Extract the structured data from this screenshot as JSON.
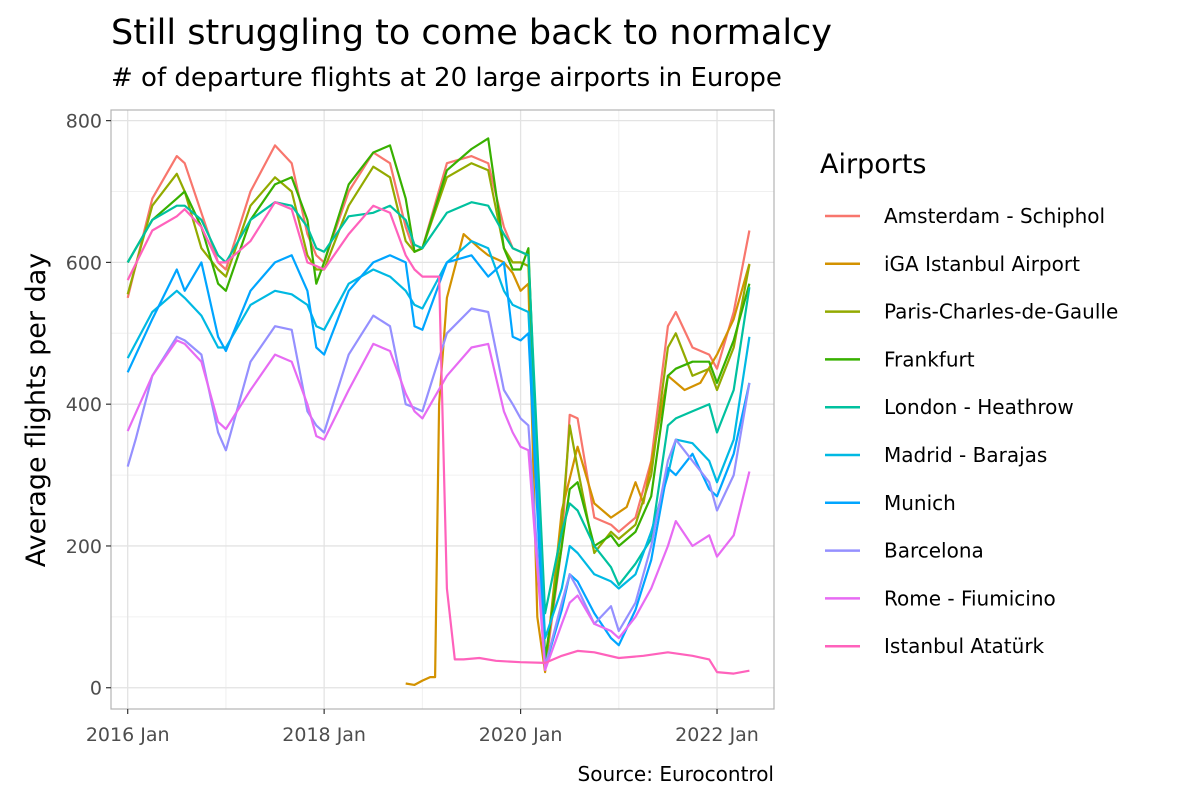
{
  "chart_data": {
    "type": "line",
    "title": "Still struggling to come back to normalcy",
    "subtitle": "# of departure flights at 20 large airports in Europe",
    "ylabel": "Average flights per day",
    "xlabel": "",
    "caption": "Source: Eurocontrol",
    "legend_title": "Airports",
    "legend_position": "right",
    "grid": true,
    "xlim": [
      2015.83,
      2022.58
    ],
    "ylim": [
      -30,
      815
    ],
    "x_ticks": [
      {
        "value": 2016.0,
        "label": "2016 Jan"
      },
      {
        "value": 2018.0,
        "label": "2018 Jan"
      },
      {
        "value": 2020.0,
        "label": "2020 Jan"
      },
      {
        "value": 2022.0,
        "label": "2022 Jan"
      }
    ],
    "y_ticks": [
      0,
      200,
      400,
      600,
      800
    ],
    "series": [
      {
        "name": "Amsterdam - Schiphol",
        "color": "#F8766D",
        "x": [
          2016.0,
          2016.25,
          2016.5,
          2016.58,
          2016.75,
          2016.92,
          2017.0,
          2017.25,
          2017.5,
          2017.67,
          2017.83,
          2017.92,
          2018.0,
          2018.25,
          2018.5,
          2018.67,
          2018.83,
          2018.92,
          2019.0,
          2019.25,
          2019.5,
          2019.67,
          2019.83,
          2019.92,
          2020.0,
          2020.08,
          2020.25,
          2020.42,
          2020.5,
          2020.58,
          2020.75,
          2020.92,
          2021.0,
          2021.17,
          2021.33,
          2021.5,
          2021.58,
          2021.75,
          2021.92,
          2022.0,
          2022.17,
          2022.33
        ],
        "y": [
          550,
          690,
          750,
          740,
          670,
          600,
          590,
          700,
          765,
          740,
          640,
          610,
          600,
          700,
          755,
          740,
          650,
          615,
          620,
          740,
          750,
          740,
          650,
          620,
          615,
          610,
          25,
          200,
          385,
          380,
          240,
          230,
          220,
          240,
          320,
          510,
          530,
          480,
          470,
          450,
          530,
          645
        ]
      },
      {
        "name": "iGA Istanbul Airport",
        "color": "#D39200",
        "x": [
          2018.83,
          2018.92,
          2019.0,
          2019.08,
          2019.13,
          2019.17,
          2019.25,
          2019.42,
          2019.58,
          2019.67,
          2019.83,
          2019.92,
          2020.0,
          2020.08,
          2020.17,
          2020.25,
          2020.42,
          2020.58,
          2020.75,
          2020.92,
          2021.08,
          2021.17,
          2021.25,
          2021.5,
          2021.67,
          2021.83,
          2022.0,
          2022.17,
          2022.33
        ],
        "y": [
          6,
          4,
          10,
          15,
          15,
          400,
          550,
          640,
          620,
          610,
          600,
          585,
          560,
          570,
          100,
          22,
          250,
          340,
          260,
          240,
          255,
          290,
          260,
          440,
          420,
          430,
          470,
          520,
          598
        ]
      },
      {
        "name": "Paris-Charles-de-Gaulle",
        "color": "#93AA00",
        "x": [
          2016.0,
          2016.25,
          2016.5,
          2016.58,
          2016.75,
          2016.92,
          2017.0,
          2017.25,
          2017.5,
          2017.67,
          2017.83,
          2017.92,
          2018.0,
          2018.25,
          2018.5,
          2018.67,
          2018.83,
          2018.92,
          2019.0,
          2019.25,
          2019.5,
          2019.67,
          2019.83,
          2019.92,
          2020.0,
          2020.08,
          2020.25,
          2020.42,
          2020.5,
          2020.58,
          2020.75,
          2020.92,
          2021.0,
          2021.17,
          2021.33,
          2021.5,
          2021.58,
          2021.75,
          2021.92,
          2022.0,
          2022.17,
          2022.33
        ],
        "y": [
          555,
          680,
          725,
          700,
          620,
          590,
          580,
          680,
          720,
          700,
          610,
          590,
          590,
          680,
          735,
          720,
          630,
          615,
          620,
          720,
          740,
          730,
          620,
          600,
          600,
          595,
          30,
          230,
          370,
          310,
          190,
          220,
          210,
          230,
          300,
          480,
          500,
          440,
          450,
          420,
          480,
          597
        ]
      },
      {
        "name": "Frankfurt",
        "color": "#38B000",
        "x": [
          2016.0,
          2016.25,
          2016.5,
          2016.58,
          2016.75,
          2016.92,
          2017.0,
          2017.25,
          2017.5,
          2017.67,
          2017.83,
          2017.92,
          2018.0,
          2018.25,
          2018.5,
          2018.67,
          2018.83,
          2018.92,
          2019.0,
          2019.25,
          2019.5,
          2019.67,
          2019.83,
          2019.92,
          2020.0,
          2020.08,
          2020.25,
          2020.42,
          2020.5,
          2020.58,
          2020.75,
          2020.92,
          2021.0,
          2021.17,
          2021.33,
          2021.5,
          2021.58,
          2021.75,
          2021.92,
          2022.0,
          2022.17,
          2022.33
        ],
        "y": [
          600,
          660,
          690,
          700,
          650,
          570,
          560,
          660,
          710,
          720,
          660,
          570,
          600,
          710,
          755,
          765,
          690,
          615,
          620,
          730,
          760,
          775,
          620,
          590,
          590,
          620,
          40,
          200,
          280,
          290,
          200,
          215,
          200,
          220,
          270,
          440,
          450,
          460,
          460,
          430,
          490,
          570
        ]
      },
      {
        "name": "London - Heathrow",
        "color": "#00C19F",
        "x": [
          2016.0,
          2016.25,
          2016.5,
          2016.58,
          2016.75,
          2016.92,
          2017.0,
          2017.25,
          2017.5,
          2017.67,
          2017.83,
          2017.92,
          2018.0,
          2018.25,
          2018.5,
          2018.67,
          2018.83,
          2018.92,
          2019.0,
          2019.25,
          2019.5,
          2019.67,
          2019.83,
          2019.92,
          2020.0,
          2020.08,
          2020.25,
          2020.42,
          2020.5,
          2020.58,
          2020.75,
          2020.92,
          2021.0,
          2021.17,
          2021.33,
          2021.5,
          2021.58,
          2021.75,
          2021.92,
          2022.0,
          2022.17,
          2022.33
        ],
        "y": [
          600,
          660,
          680,
          680,
          660,
          610,
          600,
          660,
          685,
          680,
          650,
          620,
          615,
          665,
          670,
          680,
          660,
          625,
          620,
          670,
          685,
          680,
          640,
          620,
          615,
          610,
          105,
          220,
          260,
          250,
          200,
          170,
          145,
          175,
          210,
          370,
          380,
          390,
          400,
          360,
          420,
          565
        ]
      },
      {
        "name": "Madrid - Barajas",
        "color": "#00B9E3",
        "x": [
          2016.0,
          2016.25,
          2016.5,
          2016.58,
          2016.75,
          2016.92,
          2017.0,
          2017.25,
          2017.5,
          2017.67,
          2017.83,
          2017.92,
          2018.0,
          2018.25,
          2018.5,
          2018.67,
          2018.83,
          2018.92,
          2019.0,
          2019.25,
          2019.5,
          2019.67,
          2019.83,
          2019.92,
          2020.0,
          2020.08,
          2020.25,
          2020.42,
          2020.5,
          2020.58,
          2020.75,
          2020.92,
          2021.0,
          2021.17,
          2021.33,
          2021.5,
          2021.58,
          2021.75,
          2021.92,
          2022.0,
          2022.17,
          2022.33
        ],
        "y": [
          465,
          530,
          560,
          550,
          525,
          480,
          480,
          540,
          560,
          555,
          540,
          510,
          505,
          570,
          590,
          580,
          560,
          540,
          535,
          600,
          630,
          620,
          560,
          540,
          535,
          530,
          70,
          140,
          200,
          190,
          160,
          150,
          140,
          160,
          220,
          300,
          350,
          345,
          320,
          290,
          350,
          495
        ]
      },
      {
        "name": "Munich",
        "color": "#00A5FF",
        "x": [
          2016.0,
          2016.25,
          2016.5,
          2016.58,
          2016.75,
          2016.92,
          2017.0,
          2017.25,
          2017.5,
          2017.67,
          2017.83,
          2017.92,
          2018.0,
          2018.25,
          2018.5,
          2018.67,
          2018.83,
          2018.92,
          2019.0,
          2019.25,
          2019.5,
          2019.67,
          2019.83,
          2019.92,
          2020.0,
          2020.08,
          2020.25,
          2020.42,
          2020.5,
          2020.58,
          2020.75,
          2020.92,
          2021.0,
          2021.17,
          2021.33,
          2021.5,
          2021.58,
          2021.75,
          2021.92,
          2022.0,
          2022.17,
          2022.33
        ],
        "y": [
          445,
          520,
          590,
          560,
          600,
          495,
          475,
          560,
          600,
          610,
          560,
          480,
          470,
          560,
          600,
          610,
          600,
          510,
          505,
          600,
          610,
          580,
          600,
          495,
          490,
          500,
          30,
          110,
          160,
          150,
          105,
          70,
          60,
          110,
          180,
          310,
          300,
          330,
          280,
          270,
          330,
          430
        ]
      },
      {
        "name": "Barcelona",
        "color": "#9590FF",
        "x": [
          2016.0,
          2016.08,
          2016.25,
          2016.5,
          2016.58,
          2016.75,
          2016.92,
          2017.0,
          2017.25,
          2017.5,
          2017.67,
          2017.83,
          2017.92,
          2018.0,
          2018.25,
          2018.5,
          2018.67,
          2018.83,
          2018.92,
          2019.0,
          2019.25,
          2019.5,
          2019.67,
          2019.83,
          2019.92,
          2020.0,
          2020.08,
          2020.25,
          2020.42,
          2020.5,
          2020.58,
          2020.75,
          2020.92,
          2021.0,
          2021.17,
          2021.33,
          2021.5,
          2021.58,
          2021.75,
          2021.92,
          2022.0,
          2022.17,
          2022.33
        ],
        "y": [
          312,
          350,
          440,
          495,
          490,
          470,
          360,
          335,
          460,
          510,
          505,
          390,
          370,
          360,
          470,
          525,
          510,
          400,
          395,
          390,
          500,
          535,
          530,
          420,
          400,
          380,
          370,
          30,
          120,
          160,
          140,
          90,
          115,
          80,
          120,
          200,
          320,
          350,
          320,
          290,
          250,
          300,
          430
        ]
      },
      {
        "name": "Rome - Fiumicino",
        "color": "#E76BF3",
        "x": [
          2016.0,
          2016.25,
          2016.5,
          2016.58,
          2016.75,
          2016.92,
          2017.0,
          2017.25,
          2017.5,
          2017.67,
          2017.83,
          2017.92,
          2018.0,
          2018.25,
          2018.5,
          2018.67,
          2018.83,
          2018.92,
          2019.0,
          2019.25,
          2019.5,
          2019.67,
          2019.83,
          2019.92,
          2020.0,
          2020.08,
          2020.25,
          2020.42,
          2020.5,
          2020.58,
          2020.75,
          2020.92,
          2021.0,
          2021.17,
          2021.33,
          2021.5,
          2021.58,
          2021.75,
          2021.92,
          2022.0,
          2022.17,
          2022.33
        ],
        "y": [
          362,
          440,
          490,
          485,
          460,
          375,
          365,
          420,
          470,
          460,
          400,
          355,
          350,
          420,
          485,
          475,
          415,
          390,
          380,
          440,
          480,
          485,
          390,
          360,
          340,
          335,
          25,
          90,
          120,
          130,
          90,
          80,
          70,
          100,
          140,
          200,
          235,
          200,
          215,
          185,
          215,
          305
        ]
      },
      {
        "name": "Istanbul Atatürk",
        "color": "#FF62BC",
        "x": [
          2016.0,
          2016.25,
          2016.5,
          2016.58,
          2016.75,
          2016.92,
          2017.0,
          2017.25,
          2017.5,
          2017.67,
          2017.83,
          2017.92,
          2018.0,
          2018.25,
          2018.5,
          2018.67,
          2018.83,
          2018.92,
          2019.0,
          2019.08,
          2019.17,
          2019.25,
          2019.33,
          2019.42,
          2019.58,
          2019.75,
          2020.0,
          2020.25,
          2020.42,
          2020.58,
          2020.75,
          2021.0,
          2021.25,
          2021.5,
          2021.75,
          2021.92,
          2022.0,
          2022.17,
          2022.33
        ],
        "y": [
          575,
          645,
          665,
          675,
          650,
          600,
          600,
          630,
          685,
          675,
          600,
          595,
          590,
          640,
          680,
          670,
          610,
          590,
          580,
          580,
          580,
          140,
          40,
          40,
          42,
          38,
          36,
          35,
          45,
          52,
          50,
          42,
          45,
          50,
          45,
          40,
          22,
          20,
          24
        ]
      }
    ]
  }
}
